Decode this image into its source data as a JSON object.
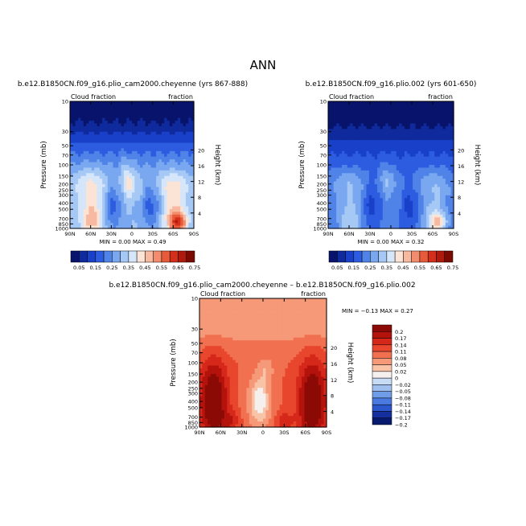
{
  "page": {
    "title": "ANN"
  },
  "chart_data": [
    {
      "type": "heatmap",
      "title": "b.e12.B1850CN.f09_g16.plio_cam2000.cheyenne (yrs 867-888)",
      "left_label": "Cloud fraction",
      "right_label": "fraction",
      "xlabel": "",
      "ylabel": "Pressure (mb)",
      "y2label": "Height (km)",
      "xtick_labels": [
        "90N",
        "60N",
        "30N",
        "0",
        "30S",
        "60S",
        "90S"
      ],
      "ytick_labels": [
        "10",
        "30",
        "50",
        "70",
        "100",
        "150",
        "200",
        "250",
        "300",
        "400",
        "500",
        "700",
        "850",
        "1000"
      ],
      "y2tick_labels": [
        "20",
        "16",
        "12",
        "8",
        "4"
      ],
      "ylim": [
        1000,
        10
      ],
      "stats": "MIN =   0.00   MAX =   0.49",
      "contour_levels": [
        "0.05",
        "0.1",
        "0.15",
        "0.2",
        "0.25",
        "0.3",
        "0.35",
        "0.4",
        "0.45",
        "0.5",
        "0.55",
        "0.6",
        "0.65",
        "0.7",
        "0.75"
      ],
      "colorbar_labels": [
        "0.05",
        "0.15",
        "0.25",
        "0.35",
        "0.45",
        "0.55",
        "0.65",
        "0.75"
      ]
    },
    {
      "type": "heatmap",
      "title": "b.e12.B1850CN.f09_g16.plio.002 (yrs 601-650)",
      "left_label": "Cloud fraction",
      "right_label": "fraction",
      "xlabel": "",
      "ylabel": "Pressure (mb)",
      "y2label": "Height (km)",
      "xtick_labels": [
        "90N",
        "60N",
        "30N",
        "0",
        "30S",
        "60S",
        "90S"
      ],
      "ytick_labels": [
        "10",
        "30",
        "50",
        "70",
        "100",
        "150",
        "200",
        "250",
        "300",
        "400",
        "500",
        "700",
        "850",
        "1000"
      ],
      "y2tick_labels": [
        "20",
        "16",
        "12",
        "8",
        "4"
      ],
      "ylim": [
        1000,
        10
      ],
      "stats": "MIN =   0.00   MAX =   0.32",
      "contour_levels": [
        "0.05",
        "0.1",
        "0.15",
        "0.2",
        "0.25",
        "0.3",
        "0.35",
        "0.4",
        "0.45",
        "0.5",
        "0.55",
        "0.6",
        "0.65",
        "0.7",
        "0.75"
      ],
      "colorbar_labels": [
        "0.05",
        "0.15",
        "0.25",
        "0.35",
        "0.45",
        "0.55",
        "0.65",
        "0.75"
      ]
    },
    {
      "type": "heatmap",
      "title": "b.e12.B1850CN.f09_g16.plio_cam2000.cheyenne – b.e12.B1850CN.f09_g16.plio.002",
      "left_label": "Cloud fraction",
      "right_label": "fraction",
      "xlabel": "",
      "ylabel": "Pressure (mb)",
      "y2label": "Height (km)",
      "xtick_labels": [
        "90N",
        "60N",
        "30N",
        "0",
        "30S",
        "60S",
        "90S"
      ],
      "ytick_labels": [
        "10",
        "30",
        "50",
        "70",
        "100",
        "150",
        "200",
        "250",
        "300",
        "400",
        "500",
        "700",
        "850",
        "1000"
      ],
      "y2tick_labels": [
        "20",
        "16",
        "12",
        "8",
        "4"
      ],
      "ylim": [
        1000,
        10
      ],
      "stats": "MIN =   −0.13   MAX =   0.27",
      "contour_levels": [
        "0.2",
        "0.17",
        "0.14",
        "0.11",
        "0.08",
        "0.05",
        "0.02",
        "0",
        "−0.02",
        "−0.05",
        "−0.08",
        "−0.11",
        "−0.14",
        "−0.17",
        "−0.2"
      ],
      "colorbar_labels": [
        "0.2",
        "0.17",
        "0.14",
        "0.11",
        "0.08",
        "0.05",
        "0.02",
        "0",
        "−0.02",
        "−0.05",
        "−0.08",
        "−0.11",
        "−0.14",
        "−0.17",
        "−0.2"
      ]
    }
  ],
  "colors": {
    "seq": [
      "#08146b",
      "#0f2a9c",
      "#1840c8",
      "#2d5ce0",
      "#5083e8",
      "#7aa8f0",
      "#a6c8f5",
      "#d5e5fa",
      "#fbe3d6",
      "#f7b9a0",
      "#f28c6c",
      "#e85b3a",
      "#d42f1a",
      "#b01a0c",
      "#7a0a02"
    ],
    "diff": [
      "#8c0a06",
      "#b4130c",
      "#d6281a",
      "#e8472d",
      "#f07050",
      "#f59978",
      "#f9c3a8",
      "#f5efee",
      "#c8dbf5",
      "#9fc0ef",
      "#6f9de8",
      "#4a7ae0",
      "#2b56cc",
      "#15309e",
      "#081a6e"
    ]
  }
}
